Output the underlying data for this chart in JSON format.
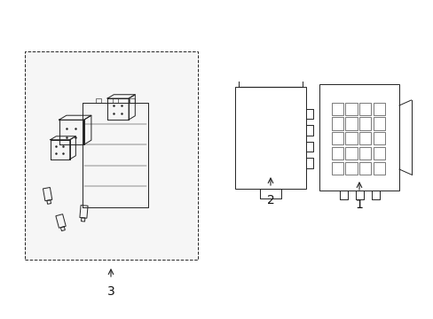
{
  "bg_color": "#ffffff",
  "light_gray": "#e8e8e8",
  "border_color": "#333333",
  "line_color": "#222222",
  "text_color": "#111111",
  "label_1": "1",
  "label_2": "2",
  "label_3": "3",
  "figsize": [
    4.89,
    3.6
  ],
  "dpi": 100
}
